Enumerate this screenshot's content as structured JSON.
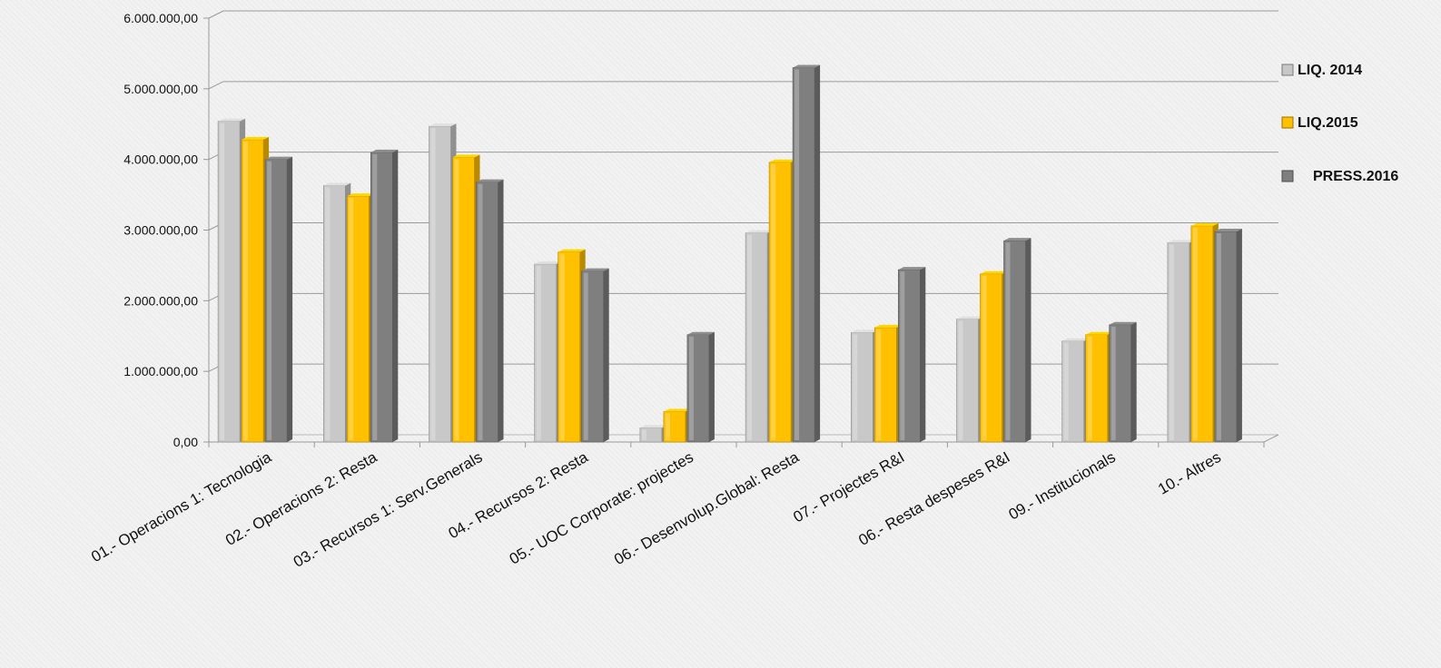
{
  "chart_data": {
    "type": "bar",
    "title": "",
    "xlabel": "",
    "ylabel": "",
    "ylim": [
      0,
      6000000
    ],
    "yticks": [
      "0,00",
      "1.000.000,00",
      "2.000.000,00",
      "3.000.000,00",
      "4.000.000,00",
      "5.000.000,00",
      "6.000.000,00"
    ],
    "grid": true,
    "legend_position": "right",
    "categories": [
      "01.- Operacions 1: Tecnologia",
      "02.- Operacions 2: Resta",
      "03.- Recursos 1: Serv.Generals",
      "04.- Recursos 2: Resta",
      "05.- UOC Corporate: projectes",
      "06.- Desenvolup.Global: Resta",
      "07.- Projectes R&I",
      "06.- Resta despeses R&I",
      "09.- Institucionals",
      "10.- Altres"
    ],
    "series": [
      {
        "name": "LIQ. 2014",
        "color": "#c8c8c8",
        "values": [
          4540000,
          3630000,
          4470000,
          2520000,
          200000,
          2960000,
          1550000,
          1740000,
          1430000,
          2820000
        ]
      },
      {
        "name": "LIQ.2015",
        "color": "#ffc000",
        "values": [
          4280000,
          3480000,
          4030000,
          2690000,
          430000,
          3960000,
          1620000,
          2380000,
          1520000,
          3060000
        ]
      },
      {
        "name": "PRESS.2016",
        "color": "#7f7f7f",
        "values": [
          4000000,
          4100000,
          3680000,
          2420000,
          1520000,
          5300000,
          2440000,
          2850000,
          1660000,
          2980000
        ]
      }
    ]
  }
}
